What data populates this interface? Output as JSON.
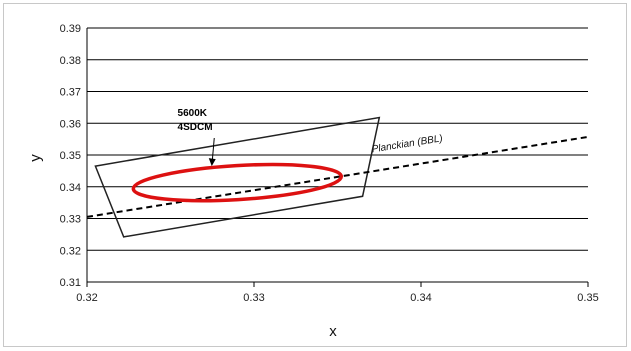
{
  "chart_data": {
    "type": "line",
    "xlabel": "x",
    "ylabel": "y",
    "xlim": [
      0.32,
      0.35
    ],
    "ylim": [
      0.31,
      0.39
    ],
    "x_ticks": [
      "0.32",
      "0.33",
      "0.34",
      "0.35"
    ],
    "y_ticks": [
      "0.31",
      "0.32",
      "0.33",
      "0.34",
      "0.35",
      "0.36",
      "0.37",
      "0.38",
      "0.39"
    ],
    "grid": "horizontal",
    "series": [
      {
        "name": "Planckian (BBL)",
        "style": "dashed",
        "color": "#000000",
        "x": [
          0.32,
          0.35
        ],
        "y": [
          0.3305,
          0.3557
        ]
      }
    ],
    "quadrangle": {
      "color": "#222222",
      "x": [
        0.3205,
        0.3375,
        0.3365,
        0.3222
      ],
      "y": [
        0.3465,
        0.3618,
        0.337,
        0.3242
      ]
    },
    "ellipse": {
      "color": "#dd1111",
      "cx": 0.329,
      "cy": 0.3413,
      "rx": 0.0071,
      "ry": 0.0072,
      "x_range": [
        0.3222,
        0.3348
      ],
      "y_range": [
        0.3353,
        0.3498
      ]
    },
    "annotations": [
      {
        "lines": [
          "5600K",
          "4SDCM"
        ],
        "arrow_to": [
          0.3275,
          0.3468
        ],
        "text_at": [
          0.3265,
          0.3585
        ]
      }
    ]
  }
}
